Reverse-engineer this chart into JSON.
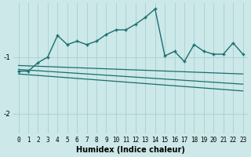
{
  "xlabel": "Humidex (Indice chaleur)",
  "x": [
    0,
    1,
    2,
    3,
    4,
    5,
    6,
    7,
    8,
    9,
    10,
    11,
    12,
    13,
    14,
    15,
    16,
    17,
    18,
    19,
    20,
    21,
    22,
    23
  ],
  "line1": [
    -1.25,
    -1.25,
    -1.1,
    -1.0,
    -0.62,
    -0.78,
    -0.72,
    -0.78,
    -0.72,
    -0.6,
    -0.52,
    -0.52,
    -0.42,
    -0.3,
    -0.15,
    -0.98,
    -0.9,
    -1.08,
    -0.78,
    -0.9,
    -0.95,
    -0.95,
    -0.75,
    -0.95
  ],
  "line2_x": [
    0,
    23
  ],
  "line2_y": [
    -1.15,
    -1.3
  ],
  "line3_x": [
    0,
    23
  ],
  "line3_y": [
    -1.22,
    -1.48
  ],
  "line4_x": [
    0,
    23
  ],
  "line4_y": [
    -1.3,
    -1.6
  ],
  "ylim": [
    -2.35,
    -0.05
  ],
  "xlim": [
    -0.5,
    23.5
  ],
  "yticks": [
    -2,
    -1
  ],
  "xticks": [
    0,
    1,
    2,
    3,
    4,
    5,
    6,
    7,
    8,
    9,
    10,
    11,
    12,
    13,
    14,
    15,
    16,
    17,
    18,
    19,
    20,
    21,
    22,
    23
  ],
  "bg_color": "#cce8e8",
  "grid_color": "#aad4d4",
  "line_color": "#1a6e6e",
  "font_color": "#000000"
}
